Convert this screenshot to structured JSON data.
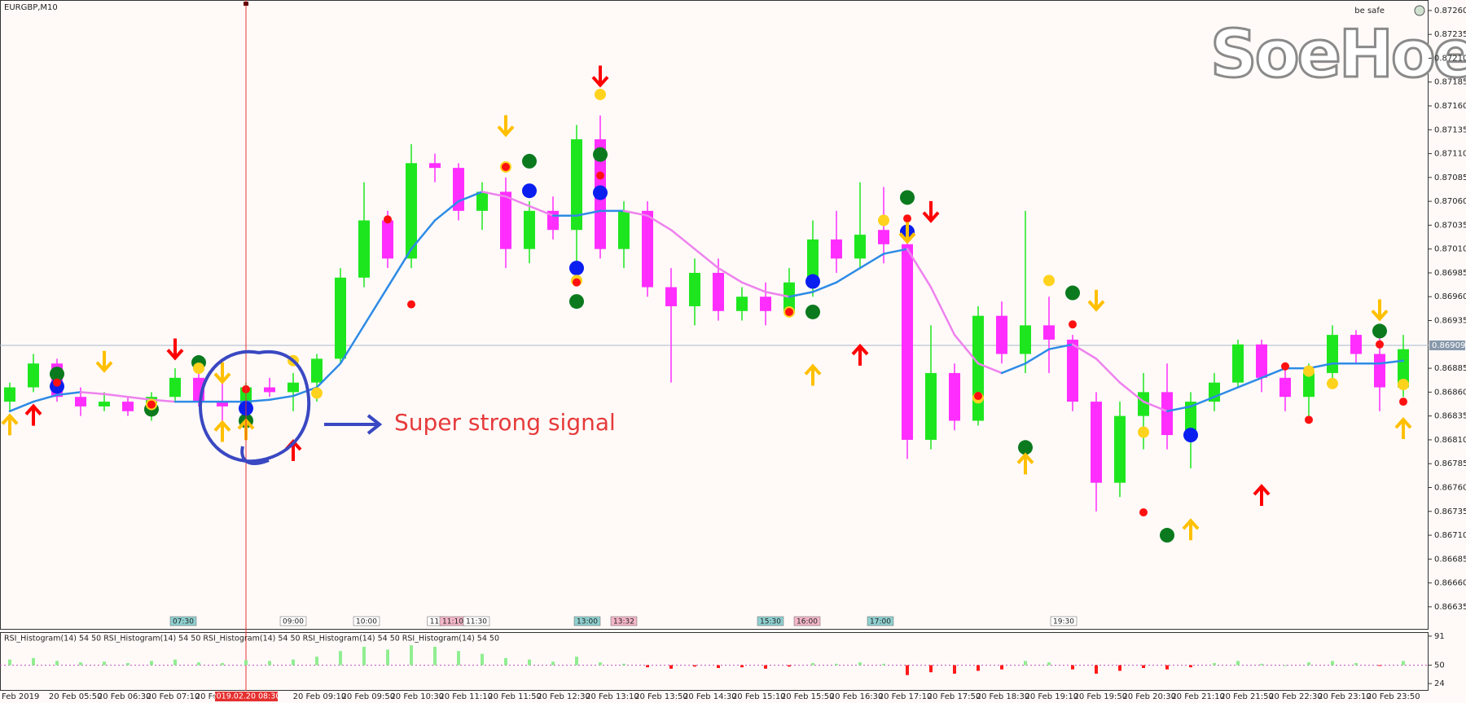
{
  "chart_data": [
    {
      "type": "candlestick",
      "title": "EURGBP,M10",
      "badge": "be safe",
      "watermark": "SoeHoe",
      "annotation": "Super strong signal",
      "cursor_label": "2019.02.20 08:30",
      "ylim": [
        0.86611,
        0.87271
      ],
      "yticks": [
        {
          "value": 0.8726,
          "label": "0.87260"
        },
        0.87235,
        {
          "value": 0.8721,
          "label": "0.87210"
        },
        0.87185,
        {
          "value": 0.8716,
          "label": "0.87160"
        },
        0.87135,
        {
          "value": 0.8711,
          "label": "0.87110"
        },
        0.87085,
        {
          "value": 0.8706,
          "label": "0.87060"
        },
        0.87035,
        {
          "value": 0.8701,
          "label": "0.87010"
        },
        0.86985,
        {
          "value": 0.8696,
          "label": "0.86960"
        },
        0.86935,
        0.86885,
        {
          "value": 0.8686,
          "label": "0.86860"
        },
        0.86835,
        {
          "value": 0.8681,
          "label": "0.86810"
        },
        0.86785,
        {
          "value": 0.8676,
          "label": "0.86760"
        },
        0.86735,
        {
          "value": 0.8671,
          "label": "0.86710"
        },
        0.86685,
        {
          "value": 0.8666,
          "label": "0.86660"
        },
        0.86635
      ],
      "last_price": 0.86909,
      "up_color": "#1ee61e",
      "down_color": "#ff2eff",
      "open": [
        0.8685,
        0.86865,
        0.8689,
        0.86855,
        0.86845,
        0.8685,
        0.8684,
        0.86855,
        0.86875,
        0.8685,
        0.86845,
        0.86865,
        0.8686,
        0.8687,
        0.86895,
        0.8698,
        0.8704,
        0.87,
        0.871,
        0.87095,
        0.8705,
        0.8707,
        0.8701,
        0.8705,
        0.8703,
        0.87125,
        0.8701,
        0.8705,
        0.8697,
        0.8695,
        0.86985,
        0.86945,
        0.8696,
        0.86945,
        0.86975,
        0.8702,
        0.87,
        0.8703,
        0.87015,
        0.8681,
        0.8688,
        0.8683,
        0.8694,
        0.869,
        0.8693,
        0.86915,
        0.8685,
        0.86765,
        0.86835,
        0.8686,
        0.86815,
        0.8685,
        0.8687,
        0.8691,
        0.86875,
        0.86855,
        0.8688,
        0.8692,
        0.869,
        0.86865
      ],
      "high": [
        0.8687,
        0.869,
        0.86895,
        0.86865,
        0.8686,
        0.86855,
        0.8686,
        0.86885,
        0.8688,
        0.8687,
        0.8687,
        0.86875,
        0.8688,
        0.869,
        0.8699,
        0.8708,
        0.8705,
        0.8712,
        0.8711,
        0.871,
        0.8708,
        0.87085,
        0.8706,
        0.87065,
        0.8714,
        0.8715,
        0.8706,
        0.8706,
        0.8699,
        0.87,
        0.87,
        0.8697,
        0.86975,
        0.8699,
        0.8704,
        0.8705,
        0.8708,
        0.87075,
        0.8702,
        0.8693,
        0.8689,
        0.8695,
        0.86955,
        0.8705,
        0.8696,
        0.8692,
        0.8686,
        0.8685,
        0.8688,
        0.8689,
        0.8686,
        0.8688,
        0.86915,
        0.86915,
        0.86885,
        0.8689,
        0.8693,
        0.86925,
        0.8693,
        0.8692
      ],
      "low": [
        0.8684,
        0.8686,
        0.8685,
        0.86835,
        0.8684,
        0.86835,
        0.8683,
        0.8685,
        0.86845,
        0.8683,
        0.86835,
        0.86855,
        0.8684,
        0.8685,
        0.8689,
        0.8697,
        0.8699,
        0.8699,
        0.8708,
        0.8704,
        0.8703,
        0.8699,
        0.86995,
        0.8702,
        0.8699,
        0.87,
        0.8699,
        0.8696,
        0.8687,
        0.8693,
        0.86935,
        0.86935,
        0.8693,
        0.8694,
        0.8696,
        0.86985,
        0.8699,
        0.86995,
        0.8679,
        0.868,
        0.8682,
        0.86825,
        0.8689,
        0.8688,
        0.8688,
        0.8684,
        0.86735,
        0.8675,
        0.868,
        0.868,
        0.8678,
        0.8684,
        0.86865,
        0.8686,
        0.8684,
        0.8683,
        0.8687,
        0.8689,
        0.8684,
        0.86855
      ],
      "close": [
        0.86865,
        0.8689,
        0.86855,
        0.86845,
        0.8685,
        0.8684,
        0.86855,
        0.86875,
        0.8685,
        0.86845,
        0.86865,
        0.8686,
        0.8687,
        0.86895,
        0.8698,
        0.8704,
        0.87,
        0.871,
        0.87095,
        0.8705,
        0.8707,
        0.8701,
        0.8705,
        0.8703,
        0.87125,
        0.8701,
        0.8705,
        0.8697,
        0.8695,
        0.86985,
        0.86945,
        0.8696,
        0.86945,
        0.86975,
        0.8702,
        0.87,
        0.87025,
        0.87015,
        0.8681,
        0.8688,
        0.8683,
        0.8694,
        0.869,
        0.8693,
        0.86915,
        0.8685,
        0.86765,
        0.86835,
        0.8686,
        0.86815,
        0.8685,
        0.8687,
        0.8691,
        0.86875,
        0.86855,
        0.8688,
        0.8692,
        0.869,
        0.86865,
        0.86905
      ],
      "ma": {
        "up_color": "#2e8be6",
        "down_color": "#ee82ee",
        "values": [
          0.8684,
          0.8685,
          0.86857,
          0.8686,
          0.86858,
          0.86855,
          0.86852,
          0.8685,
          0.8685,
          0.8685,
          0.8685,
          0.86852,
          0.86856,
          0.86865,
          0.8689,
          0.8693,
          0.8697,
          0.8701,
          0.8704,
          0.8706,
          0.8707,
          0.87065,
          0.87055,
          0.87045,
          0.87045,
          0.8705,
          0.8705,
          0.87045,
          0.8703,
          0.8701,
          0.8699,
          0.86975,
          0.86965,
          0.8696,
          0.86965,
          0.86975,
          0.8699,
          0.87005,
          0.8701,
          0.8697,
          0.8692,
          0.8689,
          0.8688,
          0.8689,
          0.86905,
          0.8691,
          0.86895,
          0.8687,
          0.8685,
          0.8684,
          0.86845,
          0.86855,
          0.86865,
          0.86875,
          0.86885,
          0.86885,
          0.8689,
          0.8689,
          0.8689,
          0.86893
        ]
      },
      "signals": [
        {
          "shape": "dot",
          "size": 9,
          "color": "#0b7a1e",
          "candles": [
            2,
            6,
            8,
            10,
            22,
            25,
            24,
            34,
            38,
            43,
            45,
            49,
            58
          ],
          "values": [
            0.86879,
            0.86842,
            0.86891,
            0.8683,
            0.87102,
            0.87109,
            0.86955,
            0.86944,
            0.87064,
            0.86802,
            0.86964,
            0.8671,
            0.86924
          ]
        },
        {
          "shape": "dot",
          "size": 9,
          "color": "#0a1ef0",
          "candles": [
            2,
            10,
            22,
            24,
            25,
            34,
            38,
            50
          ],
          "values": [
            0.86866,
            0.86843,
            0.87071,
            0.8699,
            0.87069,
            0.86976,
            0.87028,
            0.86815
          ]
        },
        {
          "shape": "dot",
          "size": 7,
          "color": "#ffd21e",
          "candles": [
            6,
            8,
            12,
            13,
            21,
            25,
            24,
            33,
            37,
            41,
            44,
            48,
            55,
            56,
            59
          ],
          "values": [
            0.86847,
            0.86885,
            0.86893,
            0.86859,
            0.87096,
            0.87172,
            0.86977,
            0.86944,
            0.8704,
            0.86854,
            0.86977,
            0.86818,
            0.86882,
            0.86869,
            0.86868
          ]
        },
        {
          "shape": "dot",
          "size": 5,
          "color": "#ff1010",
          "candles": [
            2,
            6,
            10,
            16,
            17,
            21,
            24,
            25,
            33,
            38,
            41,
            45,
            48,
            54,
            55,
            59,
            58
          ],
          "values": [
            0.8687,
            0.86847,
            0.86863,
            0.87041,
            0.86952,
            0.87096,
            0.86975,
            0.87087,
            0.86944,
            0.87042,
            0.86856,
            0.86931,
            0.86734,
            0.86887,
            0.86831,
            0.8685,
            0.8691
          ]
        },
        {
          "shape": "arrow-up",
          "size": 9,
          "color": "#ff0000",
          "candles": [
            1,
            12,
            36,
            53
          ],
          "values": [
            0.86835,
            0.86798,
            0.86898,
            0.86751
          ]
        },
        {
          "shape": "arrow-up",
          "size": 9,
          "color": "#ffc000",
          "candles": [
            0,
            9,
            10,
            34,
            43,
            50,
            59
          ],
          "values": [
            0.86825,
            0.86818,
            0.8682,
            0.86877,
            0.86784,
            0.86715,
            0.86821
          ]
        },
        {
          "shape": "arrow-down",
          "size": 9,
          "color": "#ff0000",
          "candles": [
            7,
            25,
            39
          ],
          "values": [
            0.86906,
            0.87192,
            0.8705
          ]
        },
        {
          "shape": "arrow-down",
          "size": 9,
          "color": "#ffc000",
          "candles": [
            4,
            9,
            21,
            38,
            46,
            58
          ],
          "values": [
            0.86893,
            0.86881,
            0.8714,
            0.87028,
            0.86957,
            0.86947
          ]
        }
      ],
      "session_labels": [
        "07:30",
        "09:00",
        "10:00",
        "11:",
        "11:10",
        "11:30",
        "13:00",
        "13:32",
        "15:30",
        "16:00",
        "17:00",
        "19:30"
      ],
      "time_labels": [
        "Feb 2019",
        "20 Feb 05:50",
        "20 Feb 06:30",
        "20 Feb 07:10",
        "20 Fe",
        null,
        "20 Feb 09:10",
        "20 Feb 09:50",
        "20 Feb 10:30",
        "20 Feb 11:10",
        "20 Feb 11:50",
        "20 Feb 12:30",
        "20 Feb 13:10",
        "20 Feb 13:50",
        "20 Feb 14:30",
        "20 Feb 15:10",
        "20 Feb 15:50",
        "20 Feb 16:30",
        "20 Feb 17:10",
        "20 Feb 17:50",
        "20 Feb 18:30",
        "20 Feb 19:10",
        "20 Feb 19:50",
        "20 Feb 20:30",
        "20 Feb 21:10",
        "20 Feb 21:50",
        "20 Feb 22:30",
        "20 Feb 23:10",
        "20 Feb 23:50"
      ]
    },
    {
      "type": "bar",
      "title": "RSI_Histogram(14) 54 50 RSI_Histogram(14) 54 50 RSI_Histogram(14) 54 50 RSI_Histogram(14) 54 50 RSI_Histogram(14) 54 50",
      "ylim": [
        15,
        95.5
      ],
      "yticks": [
        91,
        50,
        24
      ],
      "base": 50,
      "up_color": "#90ee90",
      "down_color": "#ff1a1a",
      "values": [
        58,
        60,
        56,
        54,
        55,
        53,
        56,
        58,
        54,
        53,
        57,
        56,
        58,
        62,
        70,
        76,
        72,
        78,
        76,
        70,
        66,
        60,
        58,
        55,
        62,
        54,
        52,
        47,
        45,
        48,
        46,
        47,
        45,
        48,
        53,
        52,
        54,
        52,
        36,
        40,
        38,
        42,
        44,
        56,
        54,
        44,
        38,
        42,
        46,
        44,
        47,
        53,
        56,
        52,
        50,
        54,
        56,
        53,
        49,
        56
      ]
    }
  ]
}
